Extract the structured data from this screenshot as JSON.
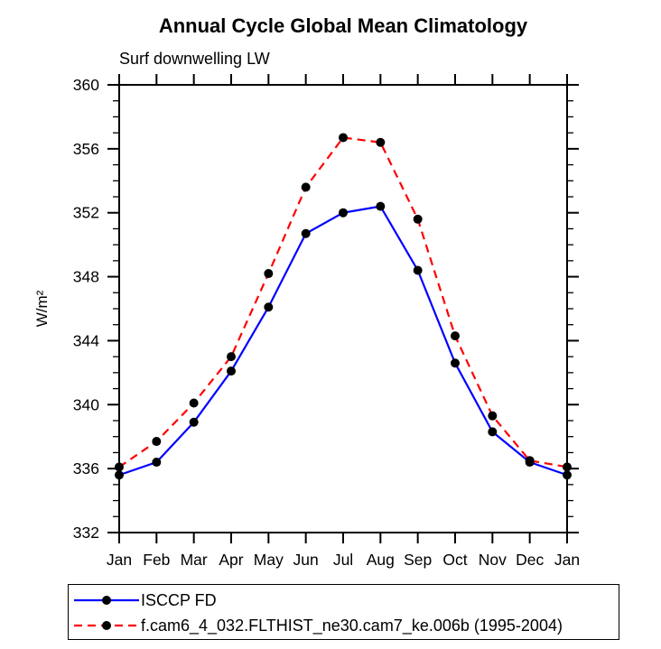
{
  "title": "Annual Cycle Global Mean Climatology",
  "subtitle": "Surf downwelling LW",
  "ylabel": "W/m²",
  "chart_data": {
    "type": "line",
    "title": "Annual Cycle Global Mean Climatology",
    "subtitle": "Surf downwelling LW",
    "xlabel": "",
    "ylabel": "W/m²",
    "x_categories": [
      "Jan",
      "Feb",
      "Mar",
      "Apr",
      "May",
      "Jun",
      "Jul",
      "Aug",
      "Sep",
      "Oct",
      "Nov",
      "Dec",
      "Jan"
    ],
    "series": [
      {
        "name": "ISCCP FD",
        "color": "#0000ff",
        "line_style": "solid",
        "marker": "filled-circle",
        "marker_color": "#000000",
        "values": [
          335.6,
          336.4,
          338.9,
          342.1,
          346.1,
          350.7,
          352.0,
          352.4,
          348.4,
          342.6,
          338.3,
          336.4,
          335.6
        ]
      },
      {
        "name": "f.cam6_4_032.FLTHIST_ne30.cam7_ke.006b (1995-2004)",
        "color": "#ff0000",
        "line_style": "dashed",
        "marker": "filled-circle",
        "marker_color": "#000000",
        "values": [
          336.1,
          337.7,
          340.1,
          343.0,
          348.2,
          353.6,
          356.7,
          356.4,
          351.6,
          344.3,
          339.3,
          336.5,
          336.1
        ]
      }
    ],
    "ylim": [
      332,
      360
    ],
    "ytick_major": [
      332,
      336,
      340,
      344,
      348,
      352,
      356,
      360
    ],
    "ytick_minor_step": 1,
    "grid": false,
    "legend_position": "bottom-left",
    "axis_color": "#000000"
  }
}
